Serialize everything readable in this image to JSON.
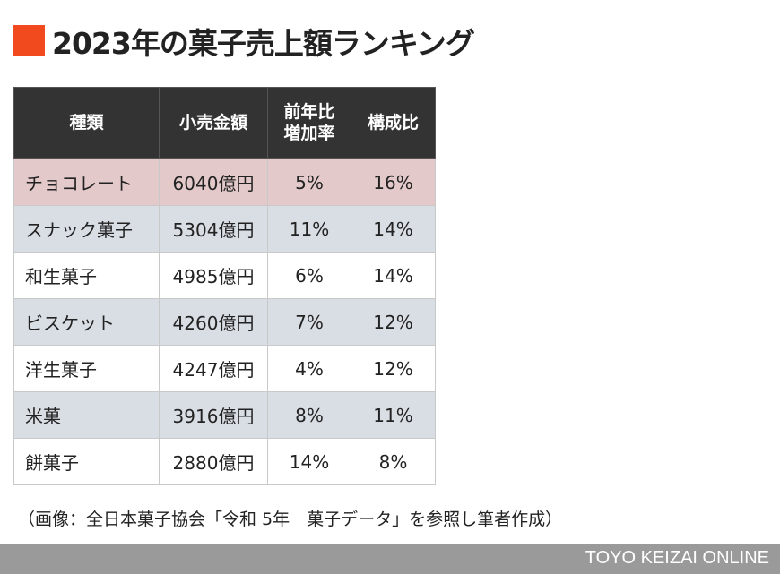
{
  "header": {
    "title": "2023年の菓子売上額ランキング"
  },
  "table": {
    "columns": [
      "種類",
      "小売金額",
      "前年比\n増加率",
      "構成比"
    ],
    "rows": [
      [
        "チョコレート",
        "6040億円",
        "5%",
        "16%"
      ],
      [
        "スナック菓子",
        "5304億円",
        "11%",
        "14%"
      ],
      [
        "和生菓子",
        "4985億円",
        "6%",
        "14%"
      ],
      [
        "ビスケット",
        "4260億円",
        "7%",
        "12%"
      ],
      [
        "洋生菓子",
        "4247億円",
        "4%",
        "12%"
      ],
      [
        "米菓",
        "3916億円",
        "8%",
        "11%"
      ],
      [
        "餅菓子",
        "2880億円",
        "14%",
        "8%"
      ]
    ]
  },
  "footnote": "（画像：全日本菓子協会「令和 5年　菓子データ」を参照し筆者作成）",
  "footer": {
    "brand": "TOYO KEIZAI ONLINE"
  }
}
